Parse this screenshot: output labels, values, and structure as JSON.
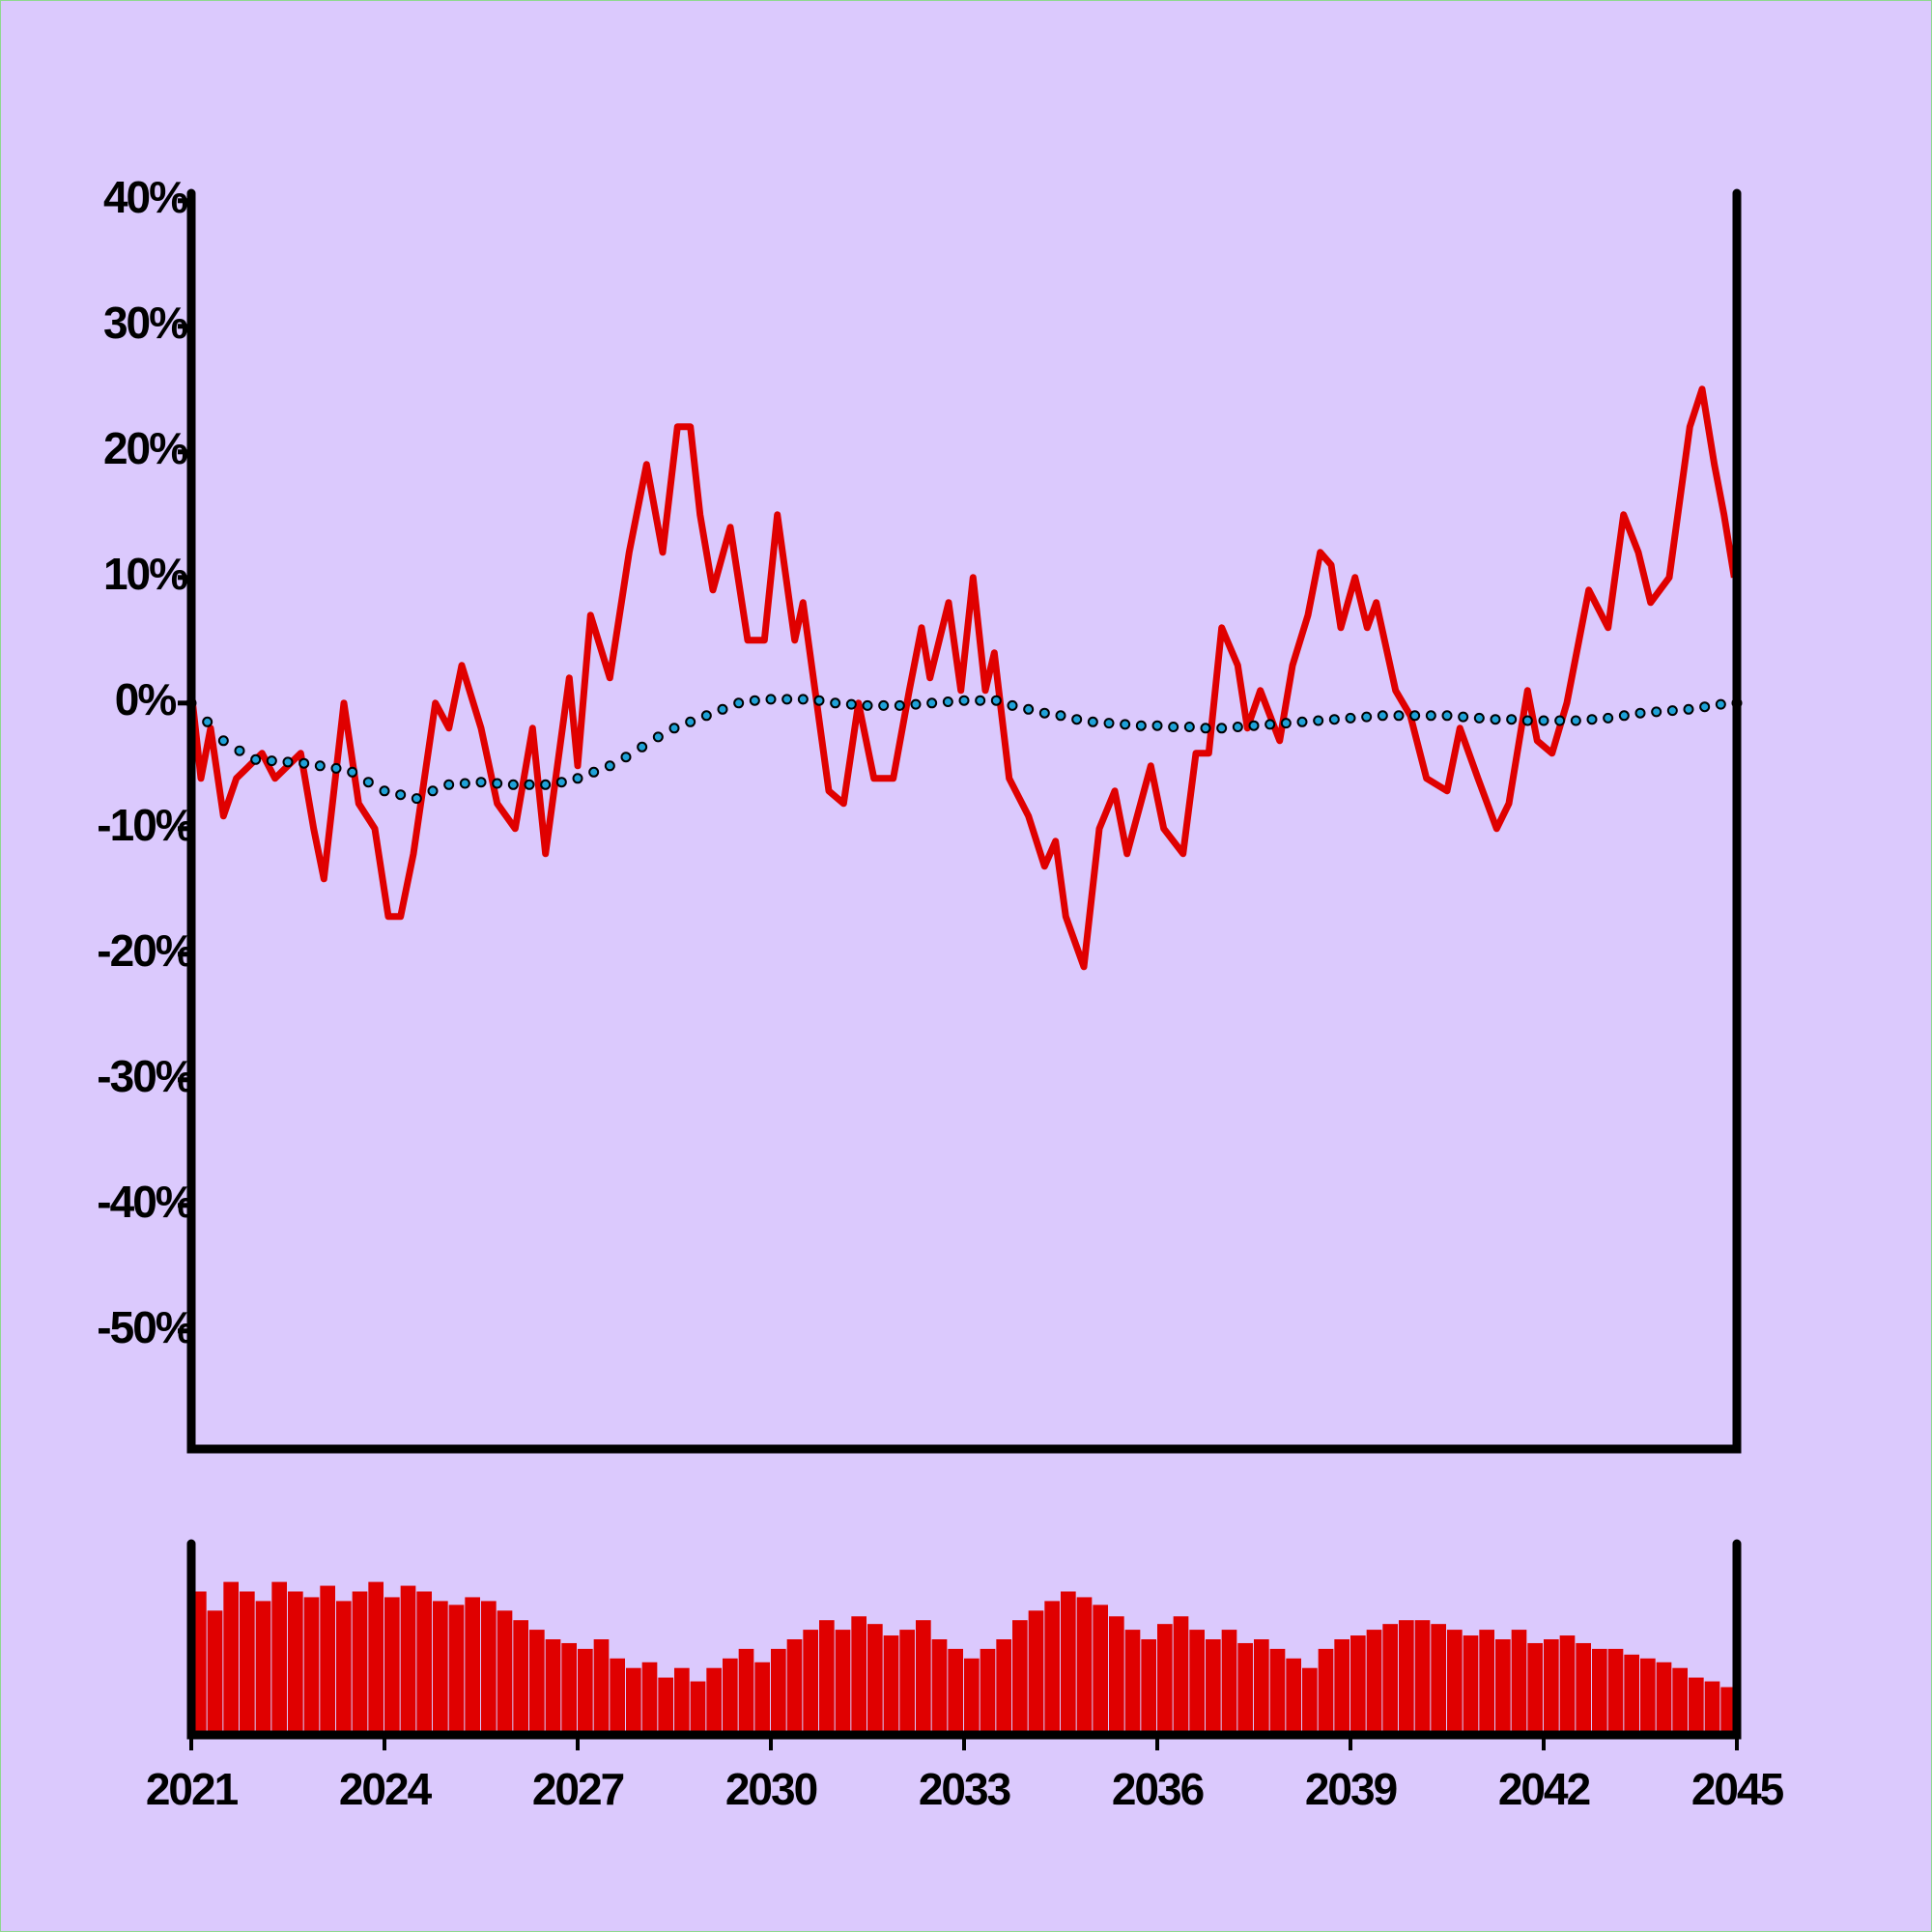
{
  "chart_data": [
    {
      "type": "line",
      "xlim": [
        2021,
        2045
      ],
      "ylim": [
        -59.4,
        40.6
      ],
      "yticks": [
        {
          "value": 40,
          "label": "40%"
        },
        {
          "value": 30,
          "label": "30%"
        },
        {
          "value": 20,
          "label": "20%"
        },
        {
          "value": 10,
          "label": "10%"
        },
        {
          "value": 0,
          "label": "0%"
        },
        {
          "value": -10,
          "label": "-10%"
        },
        {
          "value": -20,
          "label": "-20%"
        },
        {
          "value": -30,
          "label": "-30%"
        },
        {
          "value": -40,
          "label": "-40%"
        },
        {
          "value": -50,
          "label": "-50%"
        }
      ],
      "series": [
        {
          "color": "#e00000",
          "x": [
            2021,
            2021.15,
            2021.3,
            2021.5,
            2021.7,
            2021.9,
            2022.1,
            2022.3,
            2022.5,
            2022.7,
            2022.9,
            2023.06,
            2023.37,
            2023.6,
            2023.85,
            2024.06,
            2024.25,
            2024.45,
            2024.79,
            2025.0,
            2025.2,
            2025.5,
            2025.75,
            2026.03,
            2026.3,
            2026.5,
            2026.87,
            2027.0,
            2027.2,
            2027.5,
            2027.8,
            2028.07,
            2028.32,
            2028.55,
            2028.75,
            2028.9,
            2029.1,
            2029.37,
            2029.64,
            2029.9,
            2030.1,
            2030.37,
            2030.5,
            2030.9,
            2031.13,
            2031.36,
            2031.6,
            2031.9,
            2032.15,
            2032.34,
            2032.47,
            2032.76,
            2032.95,
            2033.14,
            2033.33,
            2033.47,
            2033.7,
            2034.0,
            2034.25,
            2034.42,
            2034.58,
            2034.86,
            2035.1,
            2035.34,
            2035.53,
            2035.9,
            2036.1,
            2036.4,
            2036.6,
            2036.8,
            2037.0,
            2037.25,
            2037.4,
            2037.6,
            2037.9,
            2038.1,
            2038.34,
            2038.53,
            2038.7,
            2038.85,
            2039.07,
            2039.26,
            2039.4,
            2039.7,
            2039.93,
            2040.18,
            2040.5,
            2040.7,
            2040.98,
            2041.27,
            2041.46,
            2041.75,
            2041.9,
            2042.13,
            2042.36,
            2042.7,
            2043.0,
            2043.24,
            2043.47,
            2043.66,
            2043.95,
            2044.27,
            2044.46,
            2044.65,
            2044.8,
            2044.96
          ],
          "values": [
            1,
            -6,
            -2,
            -9,
            -6,
            -5,
            -4,
            -6,
            -5,
            -4,
            -10,
            -14,
            0,
            -8,
            -10,
            -17,
            -17,
            -12,
            0,
            -2,
            3,
            -2,
            -8,
            -10,
            -2,
            -12,
            2,
            -5,
            7,
            2,
            12,
            19,
            12,
            22,
            22,
            15,
            9,
            14,
            5,
            5,
            15,
            5,
            8,
            -7,
            -8,
            0,
            -6,
            -6,
            1,
            6,
            2,
            8,
            1,
            10,
            1,
            4,
            -6,
            -9,
            -13,
            -11,
            -17,
            -21,
            -10,
            -7,
            -12,
            -5,
            -10,
            -12,
            -4,
            -4,
            6,
            3,
            -2,
            1,
            -3,
            3,
            7,
            12,
            11,
            6,
            10,
            6,
            8,
            1,
            -1,
            -6,
            -7,
            -2,
            -6,
            -10,
            -8,
            1,
            -3,
            -4,
            0,
            9,
            6,
            15,
            12,
            8,
            10,
            22,
            25,
            19,
            15,
            10
          ]
        },
        {
          "color": "#1fa2d8",
          "marker": "circle",
          "x": [
            2021,
            2021.25,
            2021.5,
            2021.75,
            2022,
            2022.25,
            2022.5,
            2022.75,
            2023,
            2023.25,
            2023.5,
            2023.75,
            2024,
            2024.25,
            2024.5,
            2024.75,
            2025,
            2025.25,
            2025.5,
            2025.75,
            2026,
            2026.25,
            2026.5,
            2026.75,
            2027,
            2027.25,
            2027.5,
            2027.75,
            2028,
            2028.25,
            2028.5,
            2028.75,
            2029,
            2029.25,
            2029.5,
            2029.75,
            2030,
            2030.25,
            2030.5,
            2030.75,
            2031,
            2031.25,
            2031.5,
            2031.75,
            2032,
            2032.25,
            2032.5,
            2032.75,
            2033,
            2033.25,
            2033.5,
            2033.75,
            2034,
            2034.25,
            2034.5,
            2034.75,
            2035,
            2035.25,
            2035.5,
            2035.75,
            2036,
            2036.25,
            2036.5,
            2036.75,
            2037,
            2037.25,
            2037.5,
            2037.75,
            2038,
            2038.25,
            2038.5,
            2038.75,
            2039,
            2039.25,
            2039.5,
            2039.75,
            2040,
            2040.25,
            2040.5,
            2040.75,
            2041,
            2041.25,
            2041.5,
            2041.75,
            2042,
            2042.25,
            2042.5,
            2042.75,
            2043,
            2043.25,
            2043.5,
            2043.75,
            2044,
            2044.25,
            2044.5,
            2044.75,
            2045
          ],
          "values": [
            0,
            -1.5,
            -3,
            -3.8,
            -4.5,
            -4.6,
            -4.7,
            -4.8,
            -5,
            -5.2,
            -5.5,
            -6.3,
            -7,
            -7.3,
            -7.6,
            -7,
            -6.5,
            -6.4,
            -6.3,
            -6.4,
            -6.5,
            -6.5,
            -6.5,
            -6.3,
            -6,
            -5.5,
            -5,
            -4.3,
            -3.5,
            -2.7,
            -2,
            -1.5,
            -1,
            -0.5,
            0,
            0.2,
            0.3,
            0.3,
            0.3,
            0.2,
            0,
            -0.1,
            -0.2,
            -0.2,
            -0.2,
            -0.1,
            0,
            0.1,
            0.2,
            0.2,
            0.2,
            -0.2,
            -0.5,
            -0.8,
            -1,
            -1.3,
            -1.5,
            -1.6,
            -1.7,
            -1.8,
            -1.8,
            -1.9,
            -1.9,
            -2,
            -2,
            -1.9,
            -1.8,
            -1.7,
            -1.6,
            -1.5,
            -1.4,
            -1.3,
            -1.2,
            -1.1,
            -1,
            -1,
            -1,
            -1,
            -1,
            -1.1,
            -1.2,
            -1.3,
            -1.3,
            -1.4,
            -1.4,
            -1.4,
            -1.4,
            -1.3,
            -1.2,
            -1,
            -0.8,
            -0.7,
            -0.6,
            -0.5,
            -0.3,
            -0.1,
            0
          ]
        }
      ]
    },
    {
      "type": "bar",
      "color": "#e00000",
      "xlim": [
        2021,
        2045
      ],
      "ylim": [
        0,
        100
      ],
      "xticks": [
        2021,
        2024,
        2027,
        2030,
        2033,
        2036,
        2039,
        2042,
        2045
      ],
      "x": [
        2021,
        2021.25,
        2021.5,
        2021.75,
        2022,
        2022.25,
        2022.5,
        2022.75,
        2023,
        2023.25,
        2023.5,
        2023.75,
        2024,
        2024.25,
        2024.5,
        2024.75,
        2025,
        2025.25,
        2025.5,
        2025.75,
        2026,
        2026.25,
        2026.5,
        2026.75,
        2027,
        2027.25,
        2027.5,
        2027.75,
        2028,
        2028.25,
        2028.5,
        2028.75,
        2029,
        2029.25,
        2029.5,
        2029.75,
        2030,
        2030.25,
        2030.5,
        2030.75,
        2031,
        2031.25,
        2031.5,
        2031.75,
        2032,
        2032.25,
        2032.5,
        2032.75,
        2033,
        2033.25,
        2033.5,
        2033.75,
        2034,
        2034.25,
        2034.5,
        2034.75,
        2035,
        2035.25,
        2035.5,
        2035.75,
        2036,
        2036.25,
        2036.5,
        2036.75,
        2037,
        2037.25,
        2037.5,
        2037.75,
        2038,
        2038.25,
        2038.5,
        2038.75,
        2039,
        2039.25,
        2039.5,
        2039.75,
        2040,
        2040.25,
        2040.5,
        2040.75,
        2041,
        2041.25,
        2041.5,
        2041.75,
        2042,
        2042.25,
        2042.5,
        2042.75,
        2043,
        2043.25,
        2043.5,
        2043.75,
        2044,
        2044.25,
        2044.5,
        2044.75
      ],
      "values": [
        75,
        65,
        80,
        75,
        70,
        80,
        75,
        72,
        78,
        70,
        75,
        80,
        72,
        78,
        75,
        70,
        68,
        72,
        70,
        65,
        60,
        55,
        50,
        48,
        45,
        50,
        40,
        35,
        38,
        30,
        35,
        28,
        35,
        40,
        45,
        38,
        45,
        50,
        55,
        60,
        55,
        62,
        58,
        52,
        55,
        60,
        50,
        45,
        40,
        45,
        50,
        60,
        65,
        70,
        75,
        72,
        68,
        62,
        55,
        50,
        58,
        62,
        55,
        50,
        55,
        48,
        50,
        45,
        40,
        35,
        45,
        50,
        52,
        55,
        58,
        60,
        60,
        58,
        55,
        52,
        55,
        50,
        55,
        48,
        50,
        52,
        48,
        45,
        45,
        42,
        40,
        38,
        35,
        30,
        28,
        25
      ]
    }
  ]
}
